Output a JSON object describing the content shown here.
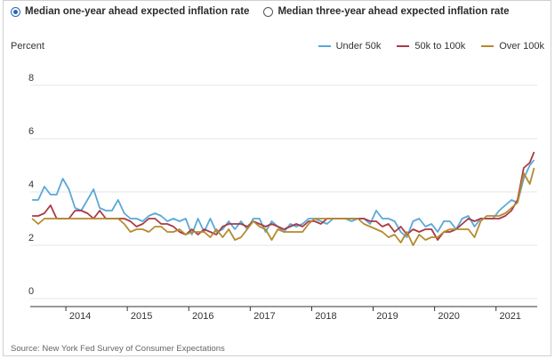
{
  "radios": [
    {
      "label": "Median one-year ahead expected inflation rate",
      "selected": true
    },
    {
      "label": "Median three-year ahead expected inflation rate",
      "selected": false
    }
  ],
  "source": "Source: New York Fed Survey of Consumer Expectations",
  "colors": {
    "axis": "#333333",
    "grid": "#e6e6e6"
  },
  "chart_data": {
    "type": "line",
    "ylabel": "Percent",
    "ylim": [
      0,
      8
    ],
    "yticks": [
      "0",
      "2",
      "4",
      "6",
      "8"
    ],
    "xlim": [
      2013.42,
      2021.67
    ],
    "xticks": [
      "2014",
      "2015",
      "2016",
      "2017",
      "2018",
      "2019",
      "2020",
      "2021"
    ],
    "grid": "horizontal",
    "legend": "top-right",
    "series": [
      {
        "name": "Under 50k",
        "color": "#5aa8d8",
        "x": [
          2013.45,
          2013.55,
          2013.65,
          2013.75,
          2013.85,
          2013.95,
          2014.05,
          2014.15,
          2014.25,
          2014.35,
          2014.45,
          2014.55,
          2014.65,
          2014.75,
          2014.85,
          2014.95,
          2015.05,
          2015.15,
          2015.25,
          2015.35,
          2015.45,
          2015.55,
          2015.65,
          2015.75,
          2015.85,
          2015.95,
          2016.05,
          2016.15,
          2016.25,
          2016.35,
          2016.45,
          2016.55,
          2016.65,
          2016.75,
          2016.85,
          2016.95,
          2017.05,
          2017.15,
          2017.25,
          2017.35,
          2017.45,
          2017.55,
          2017.65,
          2017.75,
          2017.85,
          2017.95,
          2018.05,
          2018.15,
          2018.25,
          2018.35,
          2018.45,
          2018.55,
          2018.65,
          2018.75,
          2018.85,
          2018.95,
          2019.05,
          2019.15,
          2019.25,
          2019.35,
          2019.45,
          2019.55,
          2019.65,
          2019.75,
          2019.85,
          2019.95,
          2020.05,
          2020.15,
          2020.25,
          2020.35,
          2020.45,
          2020.55,
          2020.65,
          2020.75,
          2020.85,
          2020.95,
          2021.05,
          2021.15,
          2021.25,
          2021.35,
          2021.45,
          2021.55,
          2021.62
        ],
        "values": [
          3.7,
          3.7,
          4.2,
          3.9,
          3.9,
          4.5,
          4.1,
          3.4,
          3.3,
          3.7,
          4.1,
          3.4,
          3.3,
          3.3,
          3.7,
          3.2,
          3.0,
          3.0,
          2.9,
          3.1,
          3.2,
          3.1,
          2.9,
          3.0,
          2.9,
          3.0,
          2.4,
          3.0,
          2.5,
          3.0,
          2.5,
          2.6,
          2.9,
          2.6,
          2.9,
          2.6,
          3.0,
          3.0,
          2.5,
          2.9,
          2.7,
          2.5,
          2.8,
          2.7,
          2.8,
          3.0,
          3.0,
          2.9,
          2.8,
          3.0,
          3.0,
          3.0,
          2.9,
          3.0,
          3.0,
          2.8,
          3.3,
          3.0,
          3.0,
          2.9,
          2.5,
          2.3,
          2.9,
          3.0,
          2.7,
          2.8,
          2.5,
          2.9,
          2.9,
          2.6,
          3.0,
          3.1,
          2.7,
          3.0,
          3.0,
          3.0,
          3.3,
          3.5,
          3.7,
          3.6,
          4.5,
          5.0,
          5.2
        ]
      },
      {
        "name": "50k to 100k",
        "color": "#a83a45",
        "x": [
          2013.45,
          2013.55,
          2013.65,
          2013.75,
          2013.85,
          2013.95,
          2014.05,
          2014.15,
          2014.25,
          2014.35,
          2014.45,
          2014.55,
          2014.65,
          2014.75,
          2014.85,
          2014.95,
          2015.05,
          2015.15,
          2015.25,
          2015.35,
          2015.45,
          2015.55,
          2015.65,
          2015.75,
          2015.85,
          2015.95,
          2016.05,
          2016.15,
          2016.25,
          2016.35,
          2016.45,
          2016.55,
          2016.65,
          2016.75,
          2016.85,
          2016.95,
          2017.05,
          2017.15,
          2017.25,
          2017.35,
          2017.45,
          2017.55,
          2017.65,
          2017.75,
          2017.85,
          2017.95,
          2018.05,
          2018.15,
          2018.25,
          2018.35,
          2018.45,
          2018.55,
          2018.65,
          2018.75,
          2018.85,
          2018.95,
          2019.05,
          2019.15,
          2019.25,
          2019.35,
          2019.45,
          2019.55,
          2019.65,
          2019.75,
          2019.85,
          2019.95,
          2020.05,
          2020.15,
          2020.25,
          2020.35,
          2020.45,
          2020.55,
          2020.65,
          2020.75,
          2020.85,
          2020.95,
          2021.05,
          2021.15,
          2021.25,
          2021.35,
          2021.45,
          2021.55,
          2021.62
        ],
        "values": [
          3.1,
          3.1,
          3.2,
          3.5,
          3.0,
          3.0,
          3.0,
          3.3,
          3.3,
          3.2,
          3.0,
          3.3,
          3.0,
          3.0,
          3.0,
          3.0,
          2.9,
          2.7,
          2.8,
          3.0,
          3.0,
          2.8,
          2.8,
          2.7,
          2.5,
          2.4,
          2.6,
          2.4,
          2.6,
          2.5,
          2.4,
          2.7,
          2.8,
          2.8,
          2.8,
          2.7,
          2.9,
          2.8,
          2.7,
          2.8,
          2.7,
          2.6,
          2.7,
          2.8,
          2.7,
          2.9,
          2.9,
          2.8,
          3.0,
          3.0,
          3.0,
          3.0,
          3.0,
          3.0,
          3.0,
          2.9,
          2.9,
          2.7,
          2.8,
          2.5,
          2.7,
          2.4,
          2.6,
          2.5,
          2.6,
          2.6,
          2.2,
          2.5,
          2.5,
          2.6,
          2.8,
          3.0,
          2.9,
          3.0,
          3.0,
          3.0,
          3.0,
          3.1,
          3.3,
          3.7,
          4.9,
          5.1,
          5.5
        ]
      },
      {
        "name": "Over 100k",
        "color": "#b58a2e",
        "x": [
          2013.45,
          2013.55,
          2013.65,
          2013.75,
          2013.85,
          2013.95,
          2014.05,
          2014.15,
          2014.25,
          2014.35,
          2014.45,
          2014.55,
          2014.65,
          2014.75,
          2014.85,
          2014.95,
          2015.05,
          2015.15,
          2015.25,
          2015.35,
          2015.45,
          2015.55,
          2015.65,
          2015.75,
          2015.85,
          2015.95,
          2016.05,
          2016.15,
          2016.25,
          2016.35,
          2016.45,
          2016.55,
          2016.65,
          2016.75,
          2016.85,
          2016.95,
          2017.05,
          2017.15,
          2017.25,
          2017.35,
          2017.45,
          2017.55,
          2017.65,
          2017.75,
          2017.85,
          2017.95,
          2018.05,
          2018.15,
          2018.25,
          2018.35,
          2018.45,
          2018.55,
          2018.65,
          2018.75,
          2018.85,
          2018.95,
          2019.05,
          2019.15,
          2019.25,
          2019.35,
          2019.45,
          2019.55,
          2019.65,
          2019.75,
          2019.85,
          2019.95,
          2020.05,
          2020.15,
          2020.25,
          2020.35,
          2020.45,
          2020.55,
          2020.65,
          2020.75,
          2020.85,
          2020.95,
          2021.05,
          2021.15,
          2021.25,
          2021.35,
          2021.45,
          2021.55,
          2021.62
        ],
        "values": [
          3.0,
          2.8,
          3.0,
          3.0,
          3.0,
          3.0,
          3.0,
          3.0,
          3.0,
          3.0,
          3.0,
          3.0,
          3.0,
          3.0,
          3.0,
          2.8,
          2.5,
          2.6,
          2.6,
          2.5,
          2.7,
          2.7,
          2.5,
          2.5,
          2.6,
          2.4,
          2.5,
          2.5,
          2.5,
          2.3,
          2.6,
          2.3,
          2.6,
          2.2,
          2.3,
          2.6,
          2.9,
          2.7,
          2.6,
          2.2,
          2.6,
          2.5,
          2.5,
          2.5,
          2.5,
          2.8,
          3.0,
          3.0,
          3.0,
          3.0,
          3.0,
          3.0,
          3.0,
          3.0,
          2.8,
          2.7,
          2.6,
          2.5,
          2.3,
          2.4,
          2.1,
          2.5,
          2.0,
          2.4,
          2.2,
          2.3,
          2.3,
          2.5,
          2.6,
          2.6,
          2.6,
          2.6,
          2.3,
          2.9,
          3.1,
          3.1,
          3.1,
          3.2,
          3.4,
          3.6,
          4.7,
          4.3,
          4.9
        ]
      }
    ]
  }
}
